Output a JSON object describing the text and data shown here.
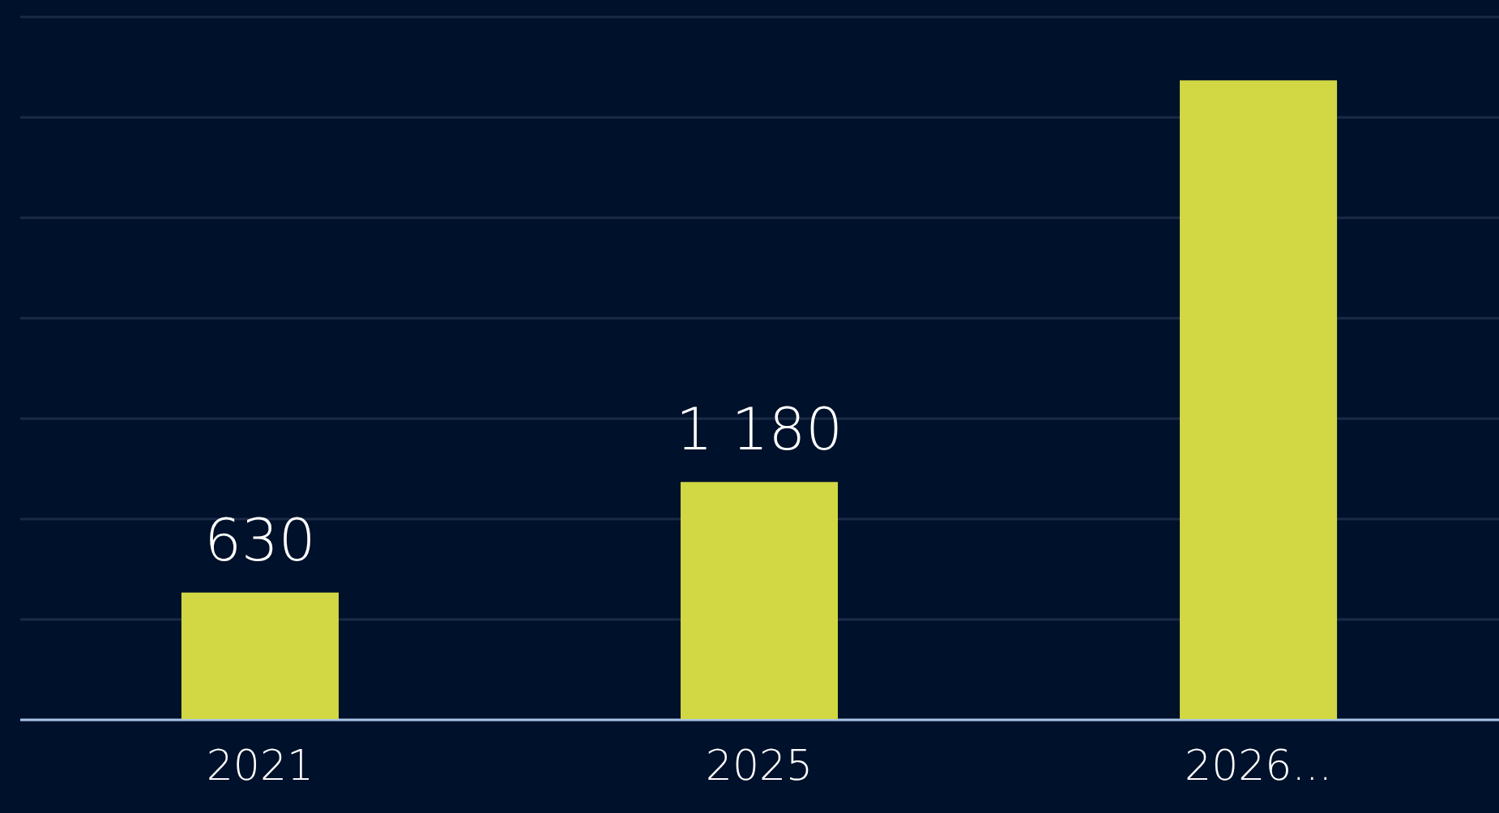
{
  "chart_data": {
    "type": "bar",
    "categories": [
      "2021",
      "2025",
      "2026..."
    ],
    "values": [
      630,
      1180,
      3180
    ],
    "color": "#d2d844",
    "value_labels": [
      "630",
      "1 180",
      null
    ],
    "ylim": [
      0,
      3500
    ],
    "yticks": [
      {
        "value": 0,
        "label": null
      },
      {
        "value": 500,
        "label": null
      },
      {
        "value": 1000,
        "label": null
      },
      {
        "value": 1500,
        "label": null
      },
      {
        "value": 2000,
        "label": null
      },
      {
        "value": 2500,
        "label": null
      },
      {
        "value": 3000,
        "label": null
      },
      {
        "value": 3500,
        "label": null
      }
    ],
    "grid": "y",
    "tick_labels": "x"
  }
}
